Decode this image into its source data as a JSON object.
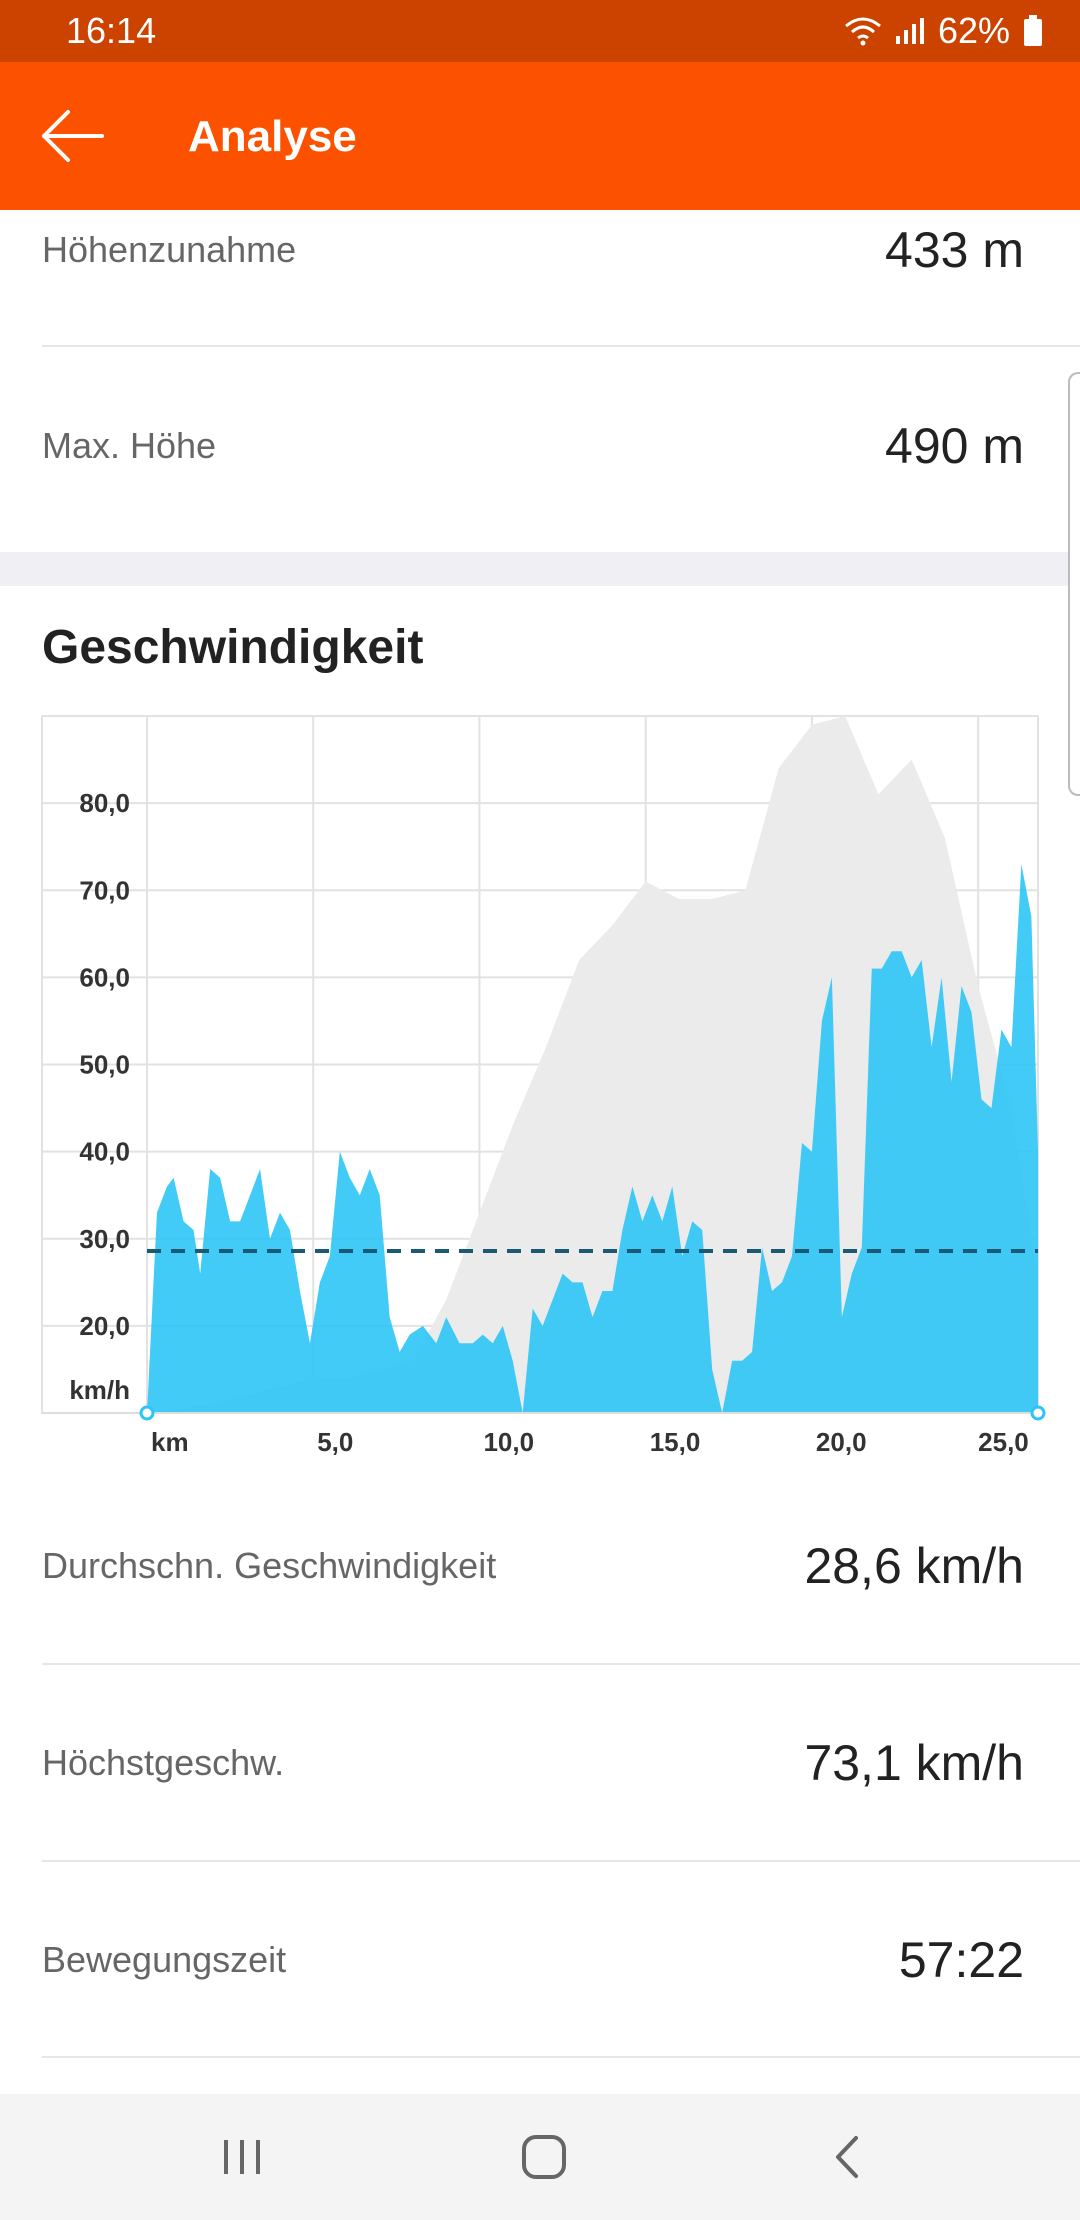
{
  "status_bar": {
    "time": "16:14",
    "battery": "62%"
  },
  "appbar": {
    "title": "Analyse"
  },
  "elevation": {
    "rows": [
      {
        "label": "Höhenzunahme",
        "value": "433 m"
      },
      {
        "label": "Max. Höhe",
        "value": "490 m"
      }
    ]
  },
  "speed_section": {
    "title": "Geschwindigkeit"
  },
  "chart_data": {
    "type": "area",
    "ylabel": "km/h",
    "xlabel": "km",
    "x_ticks": [
      "5,0",
      "10,0",
      "15,0",
      "20,0",
      "25,0"
    ],
    "y_ticks": [
      "20,0",
      "30,0",
      "40,0",
      "50,0",
      "60,0",
      "70,0",
      "80,0"
    ],
    "xlim": [
      0,
      26.8
    ],
    "ylim": [
      10,
      90
    ],
    "average_line": 28.6,
    "series": [
      {
        "values": [
          [
            0,
            10
          ],
          [
            0.3,
            33
          ],
          [
            0.6,
            36
          ],
          [
            0.8,
            37
          ],
          [
            1.1,
            32
          ],
          [
            1.4,
            31
          ],
          [
            1.6,
            26
          ],
          [
            1.9,
            38
          ],
          [
            2.2,
            37
          ],
          [
            2.5,
            32
          ],
          [
            2.8,
            32
          ],
          [
            3.1,
            35
          ],
          [
            3.4,
            38
          ],
          [
            3.7,
            30
          ],
          [
            4.0,
            33
          ],
          [
            4.3,
            31
          ],
          [
            4.6,
            24
          ],
          [
            4.9,
            18
          ],
          [
            5.2,
            25
          ],
          [
            5.5,
            28
          ],
          [
            5.8,
            40
          ],
          [
            6.1,
            37
          ],
          [
            6.4,
            35
          ],
          [
            6.7,
            38
          ],
          [
            7.0,
            35
          ],
          [
            7.3,
            21
          ],
          [
            7.6,
            17
          ],
          [
            7.9,
            19
          ],
          [
            8.3,
            20
          ],
          [
            8.7,
            18
          ],
          [
            9.0,
            21
          ],
          [
            9.4,
            18
          ],
          [
            9.8,
            18
          ],
          [
            10.1,
            19
          ],
          [
            10.4,
            18
          ],
          [
            10.7,
            20
          ],
          [
            11.0,
            16
          ],
          [
            11.3,
            10
          ],
          [
            11.6,
            22
          ],
          [
            11.9,
            20
          ],
          [
            12.2,
            23
          ],
          [
            12.5,
            26
          ],
          [
            12.8,
            25
          ],
          [
            13.1,
            25
          ],
          [
            13.4,
            21
          ],
          [
            13.7,
            24
          ],
          [
            14.0,
            24
          ],
          [
            14.3,
            31
          ],
          [
            14.6,
            36
          ],
          [
            14.9,
            32
          ],
          [
            15.2,
            35
          ],
          [
            15.5,
            32
          ],
          [
            15.8,
            36
          ],
          [
            16.1,
            28
          ],
          [
            16.4,
            32
          ],
          [
            16.7,
            31
          ],
          [
            17.0,
            15
          ],
          [
            17.3,
            10
          ],
          [
            17.6,
            16
          ],
          [
            17.9,
            16
          ],
          [
            18.2,
            17
          ],
          [
            18.5,
            29
          ],
          [
            18.8,
            24
          ],
          [
            19.1,
            25
          ],
          [
            19.4,
            28
          ],
          [
            19.7,
            41
          ],
          [
            20.0,
            40
          ],
          [
            20.3,
            55
          ],
          [
            20.6,
            60
          ],
          [
            20.9,
            21
          ],
          [
            21.2,
            26
          ],
          [
            21.5,
            29
          ],
          [
            21.8,
            61
          ],
          [
            22.1,
            61
          ],
          [
            22.4,
            63
          ],
          [
            22.7,
            63
          ],
          [
            23.0,
            60
          ],
          [
            23.3,
            62
          ],
          [
            23.6,
            52
          ],
          [
            23.9,
            60
          ],
          [
            24.2,
            48
          ],
          [
            24.5,
            59
          ],
          [
            24.8,
            56
          ],
          [
            25.1,
            46
          ],
          [
            25.4,
            45
          ],
          [
            25.7,
            54
          ],
          [
            26.0,
            52
          ],
          [
            26.3,
            73
          ],
          [
            26.6,
            67
          ]
        ],
        "note_total_length_km": 26.8
      }
    ],
    "elevation_background": {
      "values": [
        [
          0,
          10
        ],
        [
          2,
          11
        ],
        [
          3,
          12
        ],
        [
          4,
          13
        ],
        [
          5,
          14
        ],
        [
          6,
          14
        ],
        [
          7,
          15
        ],
        [
          8,
          16
        ],
        [
          9,
          23
        ],
        [
          10,
          33
        ],
        [
          11,
          43
        ],
        [
          12,
          52
        ],
        [
          13,
          62
        ],
        [
          14,
          66
        ],
        [
          15,
          71
        ],
        [
          16,
          69
        ],
        [
          17,
          69
        ],
        [
          18,
          70
        ],
        [
          19,
          84
        ],
        [
          20,
          89
        ],
        [
          21,
          90
        ],
        [
          22,
          81
        ],
        [
          23,
          85
        ],
        [
          24,
          76
        ],
        [
          25,
          59
        ],
        [
          26,
          45
        ]
      ]
    }
  },
  "speed_stats": {
    "rows": [
      {
        "label": "Durchschn. Geschwindigkeit",
        "value": "28,6 km/h"
      },
      {
        "label": "Höchstgeschw.",
        "value": "73,1 km/h"
      },
      {
        "label": "Bewegungszeit",
        "value": "57:22"
      }
    ]
  },
  "colors": {
    "status_bar": "#cc4300",
    "appbar": "#fc5200",
    "speed_fill": "#2ec5f6",
    "elevation_fill": "#ebebeb",
    "average_line": "#1a5a74"
  }
}
